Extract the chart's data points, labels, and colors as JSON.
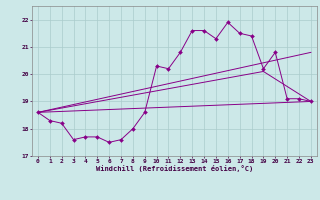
{
  "xlabel": "Windchill (Refroidissement éolien,°C)",
  "bg_color": "#cce8e8",
  "grid_color": "#aacccc",
  "line_color": "#880088",
  "xlim": [
    -0.5,
    23.5
  ],
  "ylim": [
    17.0,
    22.5
  ],
  "xticks": [
    0,
    1,
    2,
    3,
    4,
    5,
    6,
    7,
    8,
    9,
    10,
    11,
    12,
    13,
    14,
    15,
    16,
    17,
    18,
    19,
    20,
    21,
    22,
    23
  ],
  "yticks": [
    17,
    18,
    19,
    20,
    21,
    22
  ],
  "series_main": {
    "x": [
      0,
      1,
      2,
      3,
      4,
      5,
      6,
      7,
      8,
      9,
      10,
      11,
      12,
      13,
      14,
      15,
      16,
      17,
      18,
      19,
      20,
      21,
      22,
      23
    ],
    "y": [
      18.6,
      18.3,
      18.2,
      17.6,
      17.7,
      17.7,
      17.5,
      17.6,
      18.0,
      18.6,
      20.3,
      20.2,
      20.8,
      21.6,
      21.6,
      21.3,
      21.9,
      21.5,
      21.4,
      20.2,
      20.8,
      19.1,
      19.1,
      19.0
    ]
  },
  "series_upper": {
    "x": [
      0,
      23
    ],
    "y": [
      18.6,
      20.8
    ]
  },
  "series_lower": {
    "x": [
      0,
      23
    ],
    "y": [
      18.6,
      19.0
    ]
  },
  "series_mid": {
    "x": [
      0,
      19,
      23
    ],
    "y": [
      18.6,
      20.1,
      19.0
    ]
  }
}
